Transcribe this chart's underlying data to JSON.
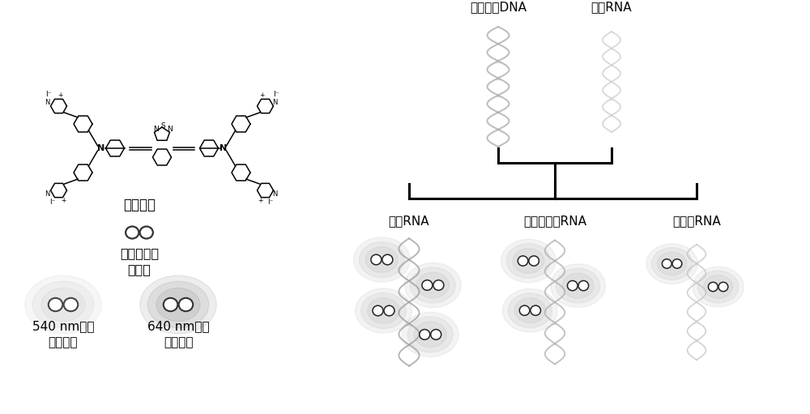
{
  "bg_color": "#ffffff",
  "left_panel": {
    "formula_label": "式（一）",
    "single_molecule_label1": "单分子状态",
    "single_molecule_label2": "不发光",
    "label_540": "540 nm荧光",
    "label_540_sub": "沟槽结合",
    "label_640": "640 nm荧光",
    "label_640_sub": "静电结合"
  },
  "right_panel": {
    "probe_label": "探针单链DNA",
    "target_label": "待测RNA",
    "branch1": "目标RNA",
    "branch2": "单碱基突变RNA",
    "branch3": "非目标RNA"
  },
  "colors": {
    "black": "#000000",
    "dark_gray": "#333333",
    "medium_gray": "#888888",
    "light_gray": "#bbbbbb",
    "very_light_gray": "#d5d5d5",
    "white": "#ffffff"
  }
}
